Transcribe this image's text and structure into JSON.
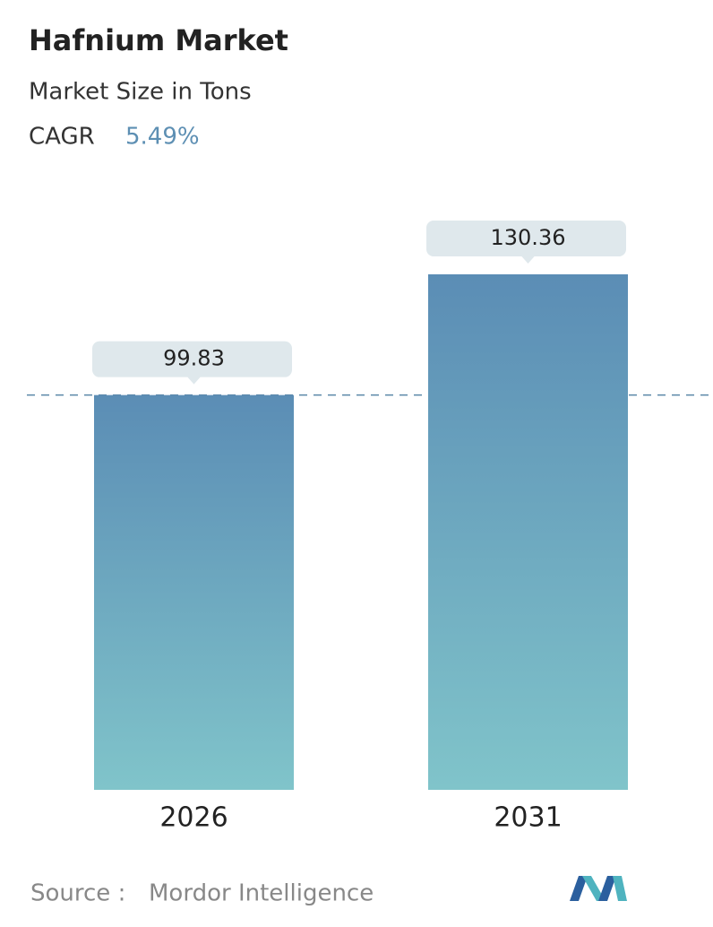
{
  "chart_data": {
    "type": "bar",
    "title": "Hafnium Market",
    "subtitle": "Market Size in Tons",
    "cagr_label": "CAGR",
    "cagr_value": "5.49%",
    "categories": [
      "2026",
      "2031"
    ],
    "values": [
      99.83,
      130.36
    ],
    "color_top": "#5b8db5",
    "color_bottom": "#80c4ca",
    "reference_line": true,
    "source_label": "Source :",
    "source": "Mordor Intelligence"
  }
}
